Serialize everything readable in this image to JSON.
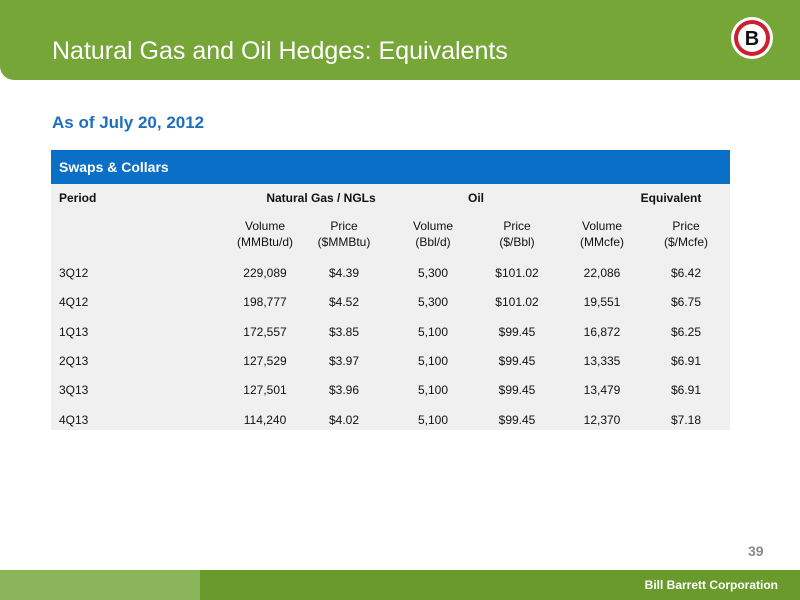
{
  "header": {
    "title": "Natural Gas and Oil Hedges: Equivalents",
    "logo_letter": "B"
  },
  "subtitle": "As of July 20, 2012",
  "table": {
    "section_label": "Swaps & Collars",
    "headers": {
      "period": "Period",
      "group_gas": "Natural Gas / NGLs",
      "group_oil": "Oil",
      "group_equivalent": "Equivalent"
    },
    "subheaders": {
      "gas_volume": "Volume\n(MMBtu/d)",
      "gas_price": "Price\n($MMBtu)",
      "oil_volume": "Volume\n(Bbl/d)",
      "oil_price": "Price\n($/Bbl)",
      "eq_volume": "Volume\n(MMcfe)",
      "eq_price": "Price\n($/Mcfe)"
    },
    "rows": [
      [
        "3Q12",
        "229,089",
        "$4.39",
        "5,300",
        "$101.02",
        "22,086",
        "$6.42"
      ],
      [
        "4Q12",
        "198,777",
        "$4.52",
        "5,300",
        "$101.02",
        "19,551",
        "$6.75"
      ],
      [
        "1Q13",
        "172,557",
        "$3.85",
        "5,100",
        "$99.45",
        "16,872",
        "$6.25"
      ],
      [
        "2Q13",
        "127,529",
        "$3.97",
        "5,100",
        "$99.45",
        "13,335",
        "$6.91"
      ],
      [
        "3Q13",
        "127,501",
        "$3.96",
        "5,100",
        "$99.45",
        "13,479",
        "$6.91"
      ],
      [
        "4Q13",
        "114,240",
        "$4.02",
        "5,100",
        "$99.45",
        "12,370",
        "$7.18"
      ]
    ]
  },
  "footer": {
    "page_number": "39",
    "company": "Bill Barrett Corporation"
  },
  "colors": {
    "header_green": "#76a538",
    "footer_green": "#6a9a2c",
    "table_blue": "#0a6fc6",
    "subtitle_blue": "#1f6fbf"
  }
}
